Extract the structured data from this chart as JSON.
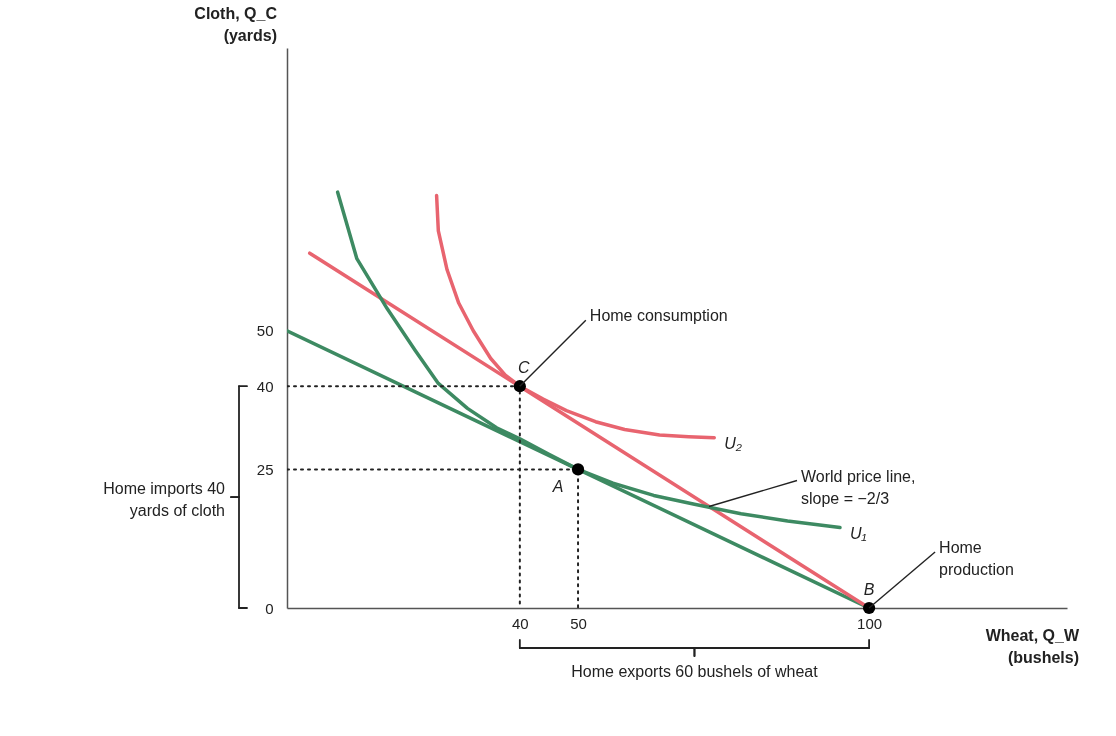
{
  "chart_data": {
    "type": "line",
    "xlabel": "Wheat, Q_W (bushels)",
    "ylabel": "Cloth, Q_C (yards)",
    "xlim": [
      0,
      134
    ],
    "ylim": [
      0,
      101
    ],
    "xticks": [
      40,
      50,
      100
    ],
    "yticks": [
      0,
      25,
      40,
      50
    ],
    "grid": false,
    "series": [
      {
        "type": "line",
        "color": "#3d8a62",
        "x": [
          0,
          100
        ],
        "values": [
          50,
          0
        ]
      },
      {
        "type": "line",
        "color": "#e8646f",
        "x": [
          3.9,
          100
        ],
        "values": [
          64,
          0
        ]
      },
      {
        "type": "line",
        "name": "U₁",
        "color": "#3d8a62",
        "x": [
          8.7,
          12,
          17.2,
          22,
          26,
          31,
          36,
          40,
          45,
          50,
          56,
          63,
          70,
          78,
          86,
          95
        ],
        "values": [
          75,
          63,
          54,
          46.5,
          40.5,
          36,
          32.5,
          30.5,
          27.7,
          25,
          22.5,
          20.3,
          18.7,
          17,
          15.7,
          14.5
        ]
      },
      {
        "type": "line",
        "name": "U₂",
        "color": "#e8646f",
        "x": [
          25.7,
          26,
          27.5,
          29.5,
          32,
          35,
          37.5,
          40,
          44,
          48,
          53,
          58,
          64,
          69,
          73.4
        ],
        "values": [
          74.4,
          68,
          61,
          55,
          50,
          45,
          42,
          40,
          37.7,
          35.6,
          33.6,
          32.2,
          31.2,
          30.9,
          30.7
        ]
      },
      {
        "type": "line",
        "color": "#222222",
        "line_style": "dotted",
        "x": [
          0,
          40,
          40
        ],
        "values": [
          40,
          40,
          0
        ]
      },
      {
        "type": "line",
        "color": "#222222",
        "line_style": "dotted",
        "x": [
          0,
          50,
          50
        ],
        "values": [
          25,
          25,
          0
        ]
      },
      {
        "type": "scatter",
        "color": "#000000",
        "marker": "circle",
        "x": [
          40,
          50,
          100
        ],
        "values": [
          40,
          25,
          0
        ]
      }
    ],
    "annotations": [
      {
        "text": "Home consumption",
        "x": 40,
        "y": 40
      },
      {
        "text": "Home production",
        "x": 100,
        "y": 0
      },
      {
        "text": "World price line, slope = −2/3",
        "x": 72.5,
        "y": 18.3
      },
      {
        "text": "A",
        "x": 50,
        "y": 25
      },
      {
        "text": "B",
        "x": 100,
        "y": 0
      },
      {
        "text": "C",
        "x": 40,
        "y": 40
      },
      "Home imports 40 yards of cloth",
      "Home exports 60 bushels of wheat"
    ]
  }
}
